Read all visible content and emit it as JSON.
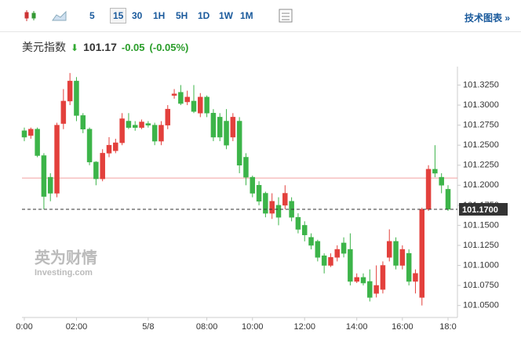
{
  "toolbar": {
    "intervals": [
      "5",
      "15",
      "30",
      "1H",
      "5H",
      "1D",
      "1W",
      "1M"
    ],
    "active": "15",
    "link": "技术图表 »"
  },
  "header": {
    "name": "美元指数",
    "price": "101.17",
    "change": "-0.05",
    "change_pct": "(-0.05%)"
  },
  "watermark": {
    "cn": "英为财情",
    "en": "Investing.com"
  },
  "chart_data": {
    "type": "candlestick",
    "up_color": "#e3403c",
    "down_color": "#3cb449",
    "categories": [
      "0:00",
      null,
      null,
      null,
      null,
      null,
      null,
      null,
      "02:00",
      null,
      null,
      null,
      null,
      null,
      null,
      null,
      null,
      null,
      null,
      "5/8",
      null,
      null,
      null,
      null,
      null,
      null,
      null,
      null,
      "08:00",
      null,
      null,
      null,
      null,
      null,
      null,
      "10:00",
      null,
      null,
      null,
      null,
      null,
      null,
      null,
      "12:00",
      null,
      null,
      null,
      null,
      null,
      null,
      null,
      "14:00",
      null,
      null,
      null,
      null,
      null,
      null,
      "16:00",
      null,
      null,
      null,
      null,
      null,
      null,
      "18:0"
    ],
    "open": [
      101.268,
      101.262,
      101.27,
      101.237,
      101.21,
      101.19,
      101.277,
      101.305,
      101.33,
      101.287,
      101.27,
      101.229,
      101.208,
      101.24,
      101.243,
      101.253,
      101.28,
      101.275,
      101.272,
      101.277,
      101.275,
      101.255,
      101.275,
      101.312,
      101.316,
      101.304,
      101.305,
      101.29,
      101.31,
      101.29,
      101.285,
      101.28,
      101.26,
      101.28,
      101.235,
      101.21,
      101.2,
      101.19,
      101.165,
      101.175,
      101.175,
      101.18,
      101.16,
      101.15,
      101.135,
      101.13,
      101.112,
      101.1,
      101.11,
      101.128,
      101.12,
      101.08,
      101.085,
      101.08,
      101.065,
      101.07,
      101.11,
      101.13,
      101.1,
      101.115,
      101.08,
      101.06,
      101.17,
      101.22,
      101.21,
      101.195
    ],
    "high": [
      101.272,
      101.272,
      101.272,
      101.24,
      101.215,
      101.278,
      101.32,
      101.34,
      101.335,
      101.29,
      101.272,
      101.23,
      101.245,
      101.26,
      101.258,
      101.29,
      101.29,
      101.28,
      101.282,
      101.28,
      101.278,
      101.28,
      101.3,
      101.32,
      101.325,
      101.318,
      101.325,
      101.315,
      101.312,
      101.295,
      101.29,
      101.295,
      101.29,
      101.285,
      101.24,
      101.212,
      101.205,
      101.192,
      101.19,
      101.185,
      101.2,
      101.185,
      101.165,
      101.155,
      101.14,
      101.132,
      101.115,
      101.115,
      101.125,
      101.135,
      101.14,
      101.09,
      101.09,
      101.095,
      101.1,
      101.105,
      101.145,
      101.135,
      101.125,
      101.12,
      101.095,
      101.172,
      101.225,
      101.25,
      101.215,
      101.2
    ],
    "low": [
      101.255,
      101.258,
      101.235,
      101.17,
      101.18,
      101.185,
      101.27,
      101.3,
      101.28,
      101.265,
      101.225,
      101.2,
      101.205,
      101.235,
      101.24,
      101.25,
      101.27,
      101.268,
      101.27,
      101.272,
      101.25,
      101.25,
      101.27,
      101.308,
      101.3,
      101.3,
      101.29,
      101.285,
      101.285,
      101.255,
      101.255,
      101.245,
      101.255,
      101.215,
      101.2,
      101.185,
      101.175,
      101.16,
      101.158,
      101.15,
      101.17,
      101.155,
      101.14,
      101.13,
      101.12,
      101.105,
      101.09,
      101.098,
      101.105,
      101.11,
      101.075,
      101.078,
      101.075,
      101.055,
      101.06,
      101.065,
      101.105,
      101.095,
      101.095,
      101.075,
      101.065,
      101.05,
      101.168,
      101.21,
      101.19,
      101.168
    ],
    "close": [
      101.26,
      101.27,
      101.237,
      101.186,
      101.19,
      101.275,
      101.305,
      101.33,
      101.287,
      101.27,
      101.229,
      101.208,
      101.24,
      101.25,
      101.253,
      101.283,
      101.272,
      101.272,
      101.279,
      101.275,
      101.255,
      101.275,
      101.295,
      101.314,
      101.302,
      101.31,
      101.292,
      101.31,
      101.29,
      101.26,
      101.26,
      101.25,
      101.285,
      101.225,
      101.21,
      101.19,
      101.18,
      101.165,
      101.18,
      101.16,
      101.19,
      101.16,
      101.145,
      101.138,
      101.125,
      101.11,
      101.1,
      101.11,
      101.12,
      101.115,
      101.08,
      101.085,
      101.078,
      101.06,
      101.075,
      101.1,
      101.13,
      101.1,
      101.12,
      101.08,
      101.09,
      101.17,
      101.22,
      101.215,
      101.2,
      101.17
    ],
    "last_price": {
      "value": 101.17,
      "label": "101.1700"
    },
    "reference_line": 101.209,
    "ylim": [
      101.035,
      101.348
    ],
    "yticks": [
      {
        "value": 101.325,
        "label": "101.3250"
      },
      {
        "value": 101.3,
        "label": "101.3000"
      },
      {
        "value": 101.275,
        "label": "101.2750"
      },
      {
        "value": 101.25,
        "label": "101.2500"
      },
      {
        "value": 101.225,
        "label": "101.2250"
      },
      {
        "value": 101.2,
        "label": "101.2000"
      },
      {
        "value": 101.175,
        "label": "101.1750"
      },
      {
        "value": 101.15,
        "label": "101.1500"
      },
      {
        "value": 101.125,
        "label": "101.1250"
      },
      {
        "value": 101.1,
        "label": "101.1000"
      },
      {
        "value": 101.075,
        "label": "101.0750"
      },
      {
        "value": 101.05,
        "label": "101.0500"
      }
    ]
  }
}
